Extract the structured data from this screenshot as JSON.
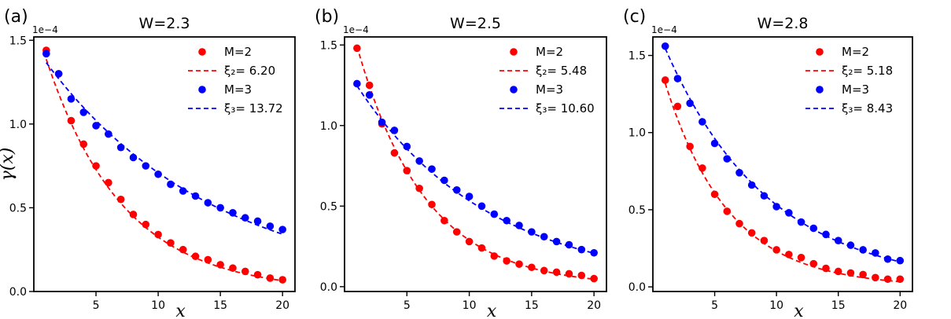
{
  "figure": {
    "xlabel": "x",
    "ylabel": "γ(x)",
    "colors": {
      "m2": "#ff0000",
      "m3": "#0000ff"
    }
  },
  "chart_data": [
    {
      "type": "scatter",
      "panel_label": "(a)",
      "title": "W=2.3",
      "xlabel": "x",
      "ylabel": "γ(x)",
      "y_exponent_label": "1e−4",
      "xlim": [
        0,
        21
      ],
      "ylim": [
        0,
        1.52
      ],
      "xticks": [
        5,
        10,
        15,
        20
      ],
      "xtick_labels": [
        "5",
        "10",
        "15",
        "20"
      ],
      "yticks": [
        0,
        0.5,
        1.0,
        1.5
      ],
      "ytick_labels": [
        "0.0",
        "0.5",
        "1.0",
        "1.5"
      ],
      "legend_position": "top-right",
      "series": [
        {
          "name": "M=2",
          "kind": "points",
          "color": "#ff0000",
          "x": [
            1,
            2,
            3,
            4,
            5,
            6,
            7,
            8,
            9,
            10,
            11,
            12,
            13,
            14,
            15,
            16,
            17,
            18,
            19,
            20
          ],
          "y": [
            1.44,
            1.3,
            1.02,
            0.88,
            0.75,
            0.65,
            0.55,
            0.46,
            0.4,
            0.34,
            0.29,
            0.25,
            0.21,
            0.19,
            0.16,
            0.14,
            0.12,
            0.1,
            0.08,
            0.07
          ]
        },
        {
          "name": "ξ₂= 6.20",
          "kind": "fit",
          "color": "#ff0000",
          "amplitude": 1.63,
          "xi": 6.2
        },
        {
          "name": "M=3",
          "kind": "points",
          "color": "#0000ff",
          "x": [
            1,
            2,
            3,
            4,
            5,
            6,
            7,
            8,
            9,
            10,
            11,
            12,
            13,
            14,
            15,
            16,
            17,
            18,
            19,
            20
          ],
          "y": [
            1.42,
            1.3,
            1.15,
            1.07,
            0.99,
            0.94,
            0.86,
            0.8,
            0.75,
            0.7,
            0.64,
            0.6,
            0.57,
            0.53,
            0.5,
            0.47,
            0.44,
            0.42,
            0.39,
            0.37
          ]
        },
        {
          "name": "ξ₃= 13.72",
          "kind": "fit",
          "color": "#0000ff",
          "amplitude": 1.47,
          "xi": 13.72
        }
      ]
    },
    {
      "type": "scatter",
      "panel_label": "(b)",
      "title": "W=2.5",
      "xlabel": "x",
      "ylabel": "",
      "y_exponent_label": "1e−4",
      "xlim": [
        0,
        21
      ],
      "ylim": [
        -0.03,
        1.55
      ],
      "xticks": [
        5,
        10,
        15,
        20
      ],
      "xtick_labels": [
        "5",
        "10",
        "15",
        "20"
      ],
      "yticks": [
        0,
        0.5,
        1.0,
        1.5
      ],
      "ytick_labels": [
        "0.0",
        "0.5",
        "1.0",
        "1.5"
      ],
      "legend_position": "top-right",
      "series": [
        {
          "name": "M=2",
          "kind": "points",
          "color": "#ff0000",
          "x": [
            1,
            2,
            3,
            4,
            5,
            6,
            7,
            8,
            9,
            10,
            11,
            12,
            13,
            14,
            15,
            16,
            17,
            18,
            19,
            20
          ],
          "y": [
            1.48,
            1.25,
            1.01,
            0.83,
            0.72,
            0.61,
            0.51,
            0.41,
            0.34,
            0.28,
            0.24,
            0.19,
            0.16,
            0.14,
            0.12,
            0.1,
            0.09,
            0.08,
            0.07,
            0.05
          ]
        },
        {
          "name": "ξ₂= 5.48",
          "kind": "fit",
          "color": "#ff0000",
          "amplitude": 1.79,
          "xi": 5.48
        },
        {
          "name": "M=3",
          "kind": "points",
          "color": "#0000ff",
          "x": [
            1,
            2,
            3,
            4,
            5,
            6,
            7,
            8,
            9,
            10,
            11,
            12,
            13,
            14,
            15,
            16,
            17,
            18,
            19,
            20
          ],
          "y": [
            1.26,
            1.19,
            1.02,
            0.97,
            0.87,
            0.78,
            0.73,
            0.66,
            0.6,
            0.56,
            0.5,
            0.45,
            0.41,
            0.38,
            0.34,
            0.31,
            0.28,
            0.26,
            0.23,
            0.21
          ]
        },
        {
          "name": "ξ₃= 10.60",
          "kind": "fit",
          "color": "#0000ff",
          "amplitude": 1.37,
          "xi": 10.6
        }
      ]
    },
    {
      "type": "scatter",
      "panel_label": "(c)",
      "title": "W=2.8",
      "xlabel": "x",
      "ylabel": "",
      "y_exponent_label": "1e−4",
      "xlim": [
        0,
        21
      ],
      "ylim": [
        -0.03,
        1.62
      ],
      "xticks": [
        5,
        10,
        15,
        20
      ],
      "xtick_labels": [
        "5",
        "10",
        "15",
        "20"
      ],
      "yticks": [
        0,
        0.5,
        1.0,
        1.5
      ],
      "ytick_labels": [
        "0.0",
        "0.5",
        "1.0",
        "1.5"
      ],
      "legend_position": "top-right",
      "series": [
        {
          "name": "M=2",
          "kind": "points",
          "color": "#ff0000",
          "x": [
            1,
            2,
            3,
            4,
            5,
            6,
            7,
            8,
            9,
            10,
            11,
            12,
            13,
            14,
            15,
            16,
            17,
            18,
            19,
            20
          ],
          "y": [
            1.34,
            1.17,
            0.91,
            0.77,
            0.6,
            0.49,
            0.41,
            0.35,
            0.3,
            0.24,
            0.21,
            0.19,
            0.15,
            0.12,
            0.1,
            0.09,
            0.08,
            0.06,
            0.05,
            0.05
          ]
        },
        {
          "name": "ξ₂= 5.18",
          "kind": "fit",
          "color": "#ff0000",
          "amplitude": 1.6,
          "xi": 5.18
        },
        {
          "name": "M=3",
          "kind": "points",
          "color": "#0000ff",
          "x": [
            1,
            2,
            3,
            4,
            5,
            6,
            7,
            8,
            9,
            10,
            11,
            12,
            13,
            14,
            15,
            16,
            17,
            18,
            19,
            20
          ],
          "y": [
            1.56,
            1.35,
            1.19,
            1.07,
            0.93,
            0.83,
            0.74,
            0.66,
            0.59,
            0.52,
            0.48,
            0.42,
            0.38,
            0.34,
            0.3,
            0.27,
            0.24,
            0.22,
            0.18,
            0.17
          ]
        },
        {
          "name": "ξ₃= 8.43",
          "kind": "fit",
          "color": "#0000ff",
          "amplitude": 1.74,
          "xi": 8.43
        }
      ]
    }
  ]
}
